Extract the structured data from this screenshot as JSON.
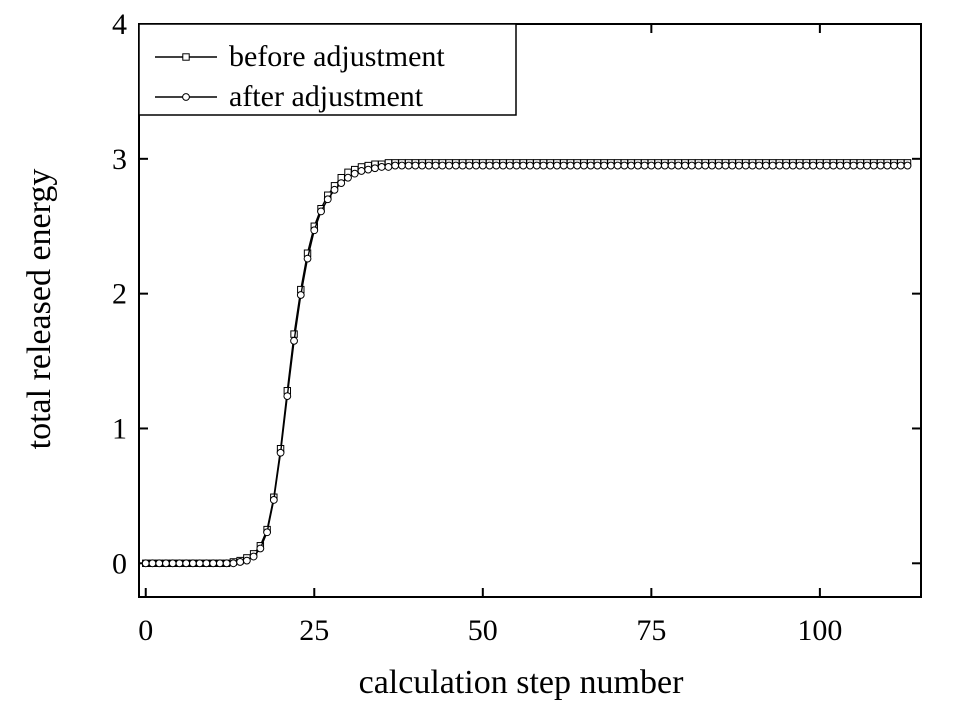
{
  "chart_data": {
    "type": "line",
    "title": "",
    "xlabel": "calculation step number",
    "ylabel": "total released energy",
    "xlim": [
      -1,
      115
    ],
    "ylim": [
      -0.25,
      4
    ],
    "xticks": [
      0,
      25,
      50,
      75,
      100
    ],
    "xtick_labels": [
      "0",
      "25",
      "50",
      "75",
      "100"
    ],
    "yticks": [
      0,
      1,
      2,
      3,
      4
    ],
    "ytick_labels": [
      "0",
      "1",
      "2",
      "3",
      "4"
    ],
    "grid": false,
    "legend_position": "top-left",
    "x": [
      0,
      1,
      2,
      3,
      4,
      5,
      6,
      7,
      8,
      9,
      10,
      11,
      12,
      13,
      14,
      15,
      16,
      17,
      18,
      19,
      20,
      21,
      22,
      23,
      24,
      25,
      26,
      27,
      28,
      29,
      30,
      31,
      32,
      33,
      34,
      35,
      36,
      37,
      38,
      39,
      40,
      41,
      42,
      43,
      44,
      45,
      46,
      47,
      48,
      49,
      50,
      51,
      52,
      53,
      54,
      55,
      56,
      57,
      58,
      59,
      60,
      61,
      62,
      63,
      64,
      65,
      66,
      67,
      68,
      69,
      70,
      71,
      72,
      73,
      74,
      75,
      76,
      77,
      78,
      79,
      80,
      81,
      82,
      83,
      84,
      85,
      86,
      87,
      88,
      89,
      90,
      91,
      92,
      93,
      94,
      95,
      96,
      97,
      98,
      99,
      100,
      101,
      102,
      103,
      104,
      105,
      106,
      107,
      108,
      109,
      110,
      111,
      112,
      113
    ],
    "series": [
      {
        "name": "before adjustment",
        "marker": "square",
        "values": [
          0,
          0,
          0,
          0,
          0,
          0,
          0,
          0,
          0,
          0,
          0,
          0,
          0,
          0.01,
          0.02,
          0.04,
          0.07,
          0.13,
          0.25,
          0.49,
          0.85,
          1.28,
          1.7,
          2.03,
          2.3,
          2.5,
          2.63,
          2.73,
          2.8,
          2.86,
          2.9,
          2.92,
          2.94,
          2.95,
          2.96,
          2.96,
          2.97,
          2.97,
          2.97,
          2.97,
          2.97,
          2.97,
          2.97,
          2.97,
          2.97,
          2.97,
          2.97,
          2.97,
          2.97,
          2.97,
          2.97,
          2.97,
          2.97,
          2.97,
          2.97,
          2.97,
          2.97,
          2.97,
          2.97,
          2.97,
          2.97,
          2.97,
          2.97,
          2.97,
          2.97,
          2.97,
          2.97,
          2.97,
          2.97,
          2.97,
          2.97,
          2.97,
          2.97,
          2.97,
          2.97,
          2.97,
          2.97,
          2.97,
          2.97,
          2.97,
          2.97,
          2.97,
          2.97,
          2.97,
          2.97,
          2.97,
          2.97,
          2.97,
          2.97,
          2.97,
          2.97,
          2.97,
          2.97,
          2.97,
          2.97,
          2.97,
          2.97,
          2.97,
          2.97,
          2.97,
          2.97,
          2.97,
          2.97,
          2.97,
          2.97,
          2.97,
          2.97,
          2.97,
          2.97,
          2.97,
          2.97,
          2.97,
          2.97,
          2.97
        ]
      },
      {
        "name": "after adjustment",
        "marker": "circle",
        "values": [
          0,
          0,
          0,
          0,
          0,
          0,
          0,
          0,
          0,
          0,
          0,
          0,
          0,
          0,
          0.01,
          0.02,
          0.05,
          0.11,
          0.23,
          0.47,
          0.82,
          1.24,
          1.65,
          1.99,
          2.26,
          2.47,
          2.61,
          2.7,
          2.77,
          2.82,
          2.86,
          2.89,
          2.91,
          2.92,
          2.93,
          2.94,
          2.94,
          2.95,
          2.95,
          2.95,
          2.95,
          2.95,
          2.95,
          2.95,
          2.95,
          2.95,
          2.95,
          2.95,
          2.95,
          2.95,
          2.95,
          2.95,
          2.95,
          2.95,
          2.95,
          2.95,
          2.95,
          2.95,
          2.95,
          2.95,
          2.95,
          2.95,
          2.95,
          2.95,
          2.95,
          2.95,
          2.95,
          2.95,
          2.95,
          2.95,
          2.95,
          2.95,
          2.95,
          2.95,
          2.95,
          2.95,
          2.95,
          2.95,
          2.95,
          2.95,
          2.95,
          2.95,
          2.95,
          2.95,
          2.95,
          2.95,
          2.95,
          2.95,
          2.95,
          2.95,
          2.95,
          2.95,
          2.95,
          2.95,
          2.95,
          2.95,
          2.95,
          2.95,
          2.95,
          2.95,
          2.95,
          2.95,
          2.95,
          2.95,
          2.95,
          2.95,
          2.95,
          2.95,
          2.95,
          2.95,
          2.95,
          2.95,
          2.95,
          2.95
        ]
      }
    ]
  }
}
